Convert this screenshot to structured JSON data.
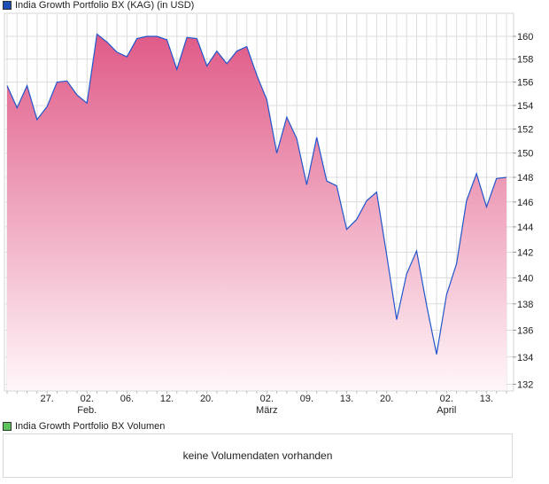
{
  "legend": {
    "price_label": "India Growth Portfolio BX (KAG) (in USD)",
    "price_color": "#1f4fb5",
    "volume_label": "India Growth Portfolio BX Volumen",
    "volume_color": "#5ec45e"
  },
  "volume_panel": {
    "message": "keine Volumendaten vorhanden"
  },
  "chart_data": {
    "type": "area",
    "title": "India Growth Portfolio BX (KAG) (in USD)",
    "yscale": "log",
    "ylim": [
      131.5,
      162.5
    ],
    "y_ticks": [
      132,
      134,
      136,
      138,
      140,
      142,
      144,
      146,
      148,
      150,
      152,
      154,
      156,
      158,
      160
    ],
    "y_axis_position": "right",
    "grid": true,
    "line_color": "#2255cc",
    "fill_color_top": "#e05a88",
    "fill_color_bottom": "#fff6f9",
    "values": [
      155.7,
      153.8,
      155.7,
      152.8,
      153.9,
      156.0,
      156.1,
      154.9,
      154.2,
      160.2,
      159.5,
      158.6,
      158.2,
      159.8,
      160.0,
      160.0,
      159.7,
      157.1,
      159.9,
      159.8,
      157.4,
      158.7,
      157.6,
      158.7,
      159.1,
      156.6,
      154.5,
      150.0,
      153.0,
      151.2,
      147.4,
      151.3,
      147.7,
      147.3,
      143.8,
      144.6,
      146.1,
      146.8,
      141.8,
      136.8,
      140.3,
      142.1,
      137.9,
      134.2,
      138.7,
      141.1,
      146.1,
      148.3,
      145.6,
      147.9,
      148.0
    ],
    "x_ticks": [
      {
        "index": 4,
        "label": "27.",
        "month": ""
      },
      {
        "index": 8,
        "label": "02.",
        "month": "Feb."
      },
      {
        "index": 12,
        "label": "06.",
        "month": ""
      },
      {
        "index": 16,
        "label": "12.",
        "month": ""
      },
      {
        "index": 20,
        "label": "20.",
        "month": ""
      },
      {
        "index": 26,
        "label": "02.",
        "month": "März"
      },
      {
        "index": 30,
        "label": "09.",
        "month": ""
      },
      {
        "index": 34,
        "label": "13.",
        "month": ""
      },
      {
        "index": 38,
        "label": "20.",
        "month": ""
      },
      {
        "index": 44,
        "label": "02.",
        "month": "April"
      },
      {
        "index": 48,
        "label": "13.",
        "month": ""
      }
    ]
  }
}
